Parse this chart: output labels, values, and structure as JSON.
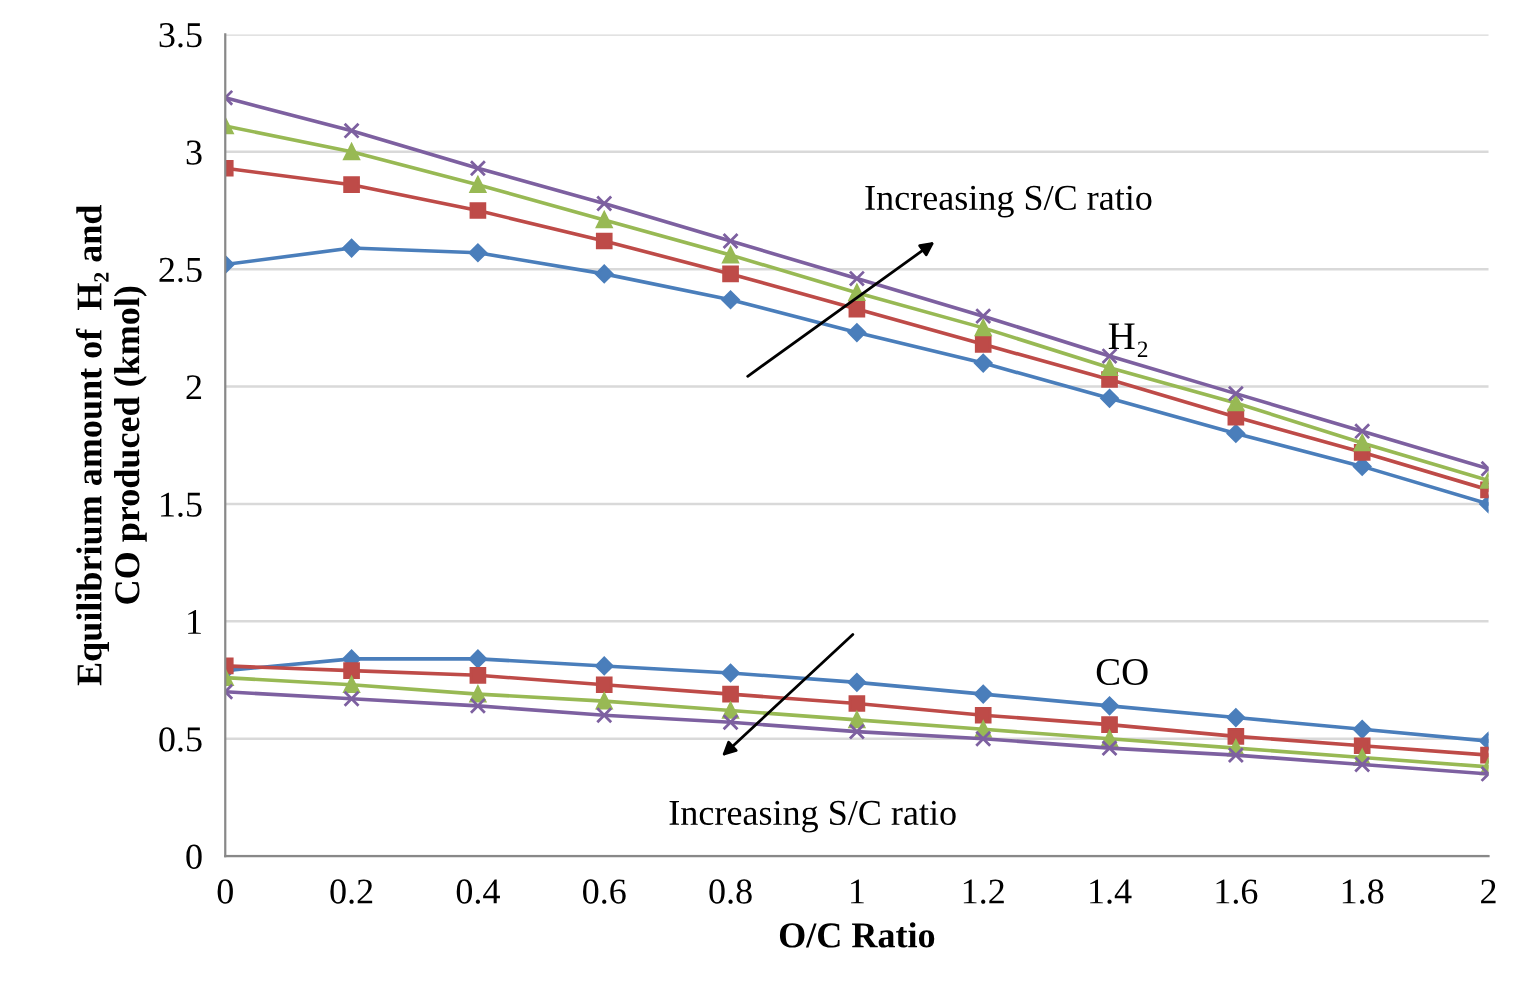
{
  "chart_data": {
    "type": "line",
    "xlabel": "O/C Ratio",
    "ylabel": "Equilibrium amount of  H₂ and\nCO produced (kmol)",
    "x": [
      0,
      0.2,
      0.4,
      0.6,
      0.8,
      1,
      1.2,
      1.4,
      1.6,
      1.8,
      2
    ],
    "xlim": [
      0,
      2
    ],
    "xticks": [
      0,
      0.2,
      0.4,
      0.6,
      0.8,
      1,
      1.2,
      1.4,
      1.6,
      1.8,
      2
    ],
    "ylim": [
      0,
      3.5
    ],
    "yticks": [
      0,
      0.5,
      1,
      1.5,
      2,
      2.5,
      3,
      3.5
    ],
    "grid": "y",
    "legend": false,
    "series": [
      {
        "color": "#4a7ebb",
        "marker": "diamond",
        "values": [
          2.52,
          2.59,
          2.57,
          2.48,
          2.37,
          2.23,
          2.1,
          1.95,
          1.8,
          1.66,
          1.5
        ]
      },
      {
        "color": "#be4b48",
        "marker": "square",
        "values": [
          2.93,
          2.86,
          2.75,
          2.62,
          2.48,
          2.33,
          2.18,
          2.03,
          1.87,
          1.72,
          1.56
        ]
      },
      {
        "color": "#98b954",
        "marker": "triangle",
        "values": [
          3.11,
          3.0,
          2.86,
          2.71,
          2.56,
          2.4,
          2.25,
          2.08,
          1.93,
          1.76,
          1.6
        ]
      },
      {
        "color": "#7d60a0",
        "marker": "cross",
        "values": [
          3.23,
          3.09,
          2.93,
          2.78,
          2.62,
          2.46,
          2.3,
          2.13,
          1.97,
          1.81,
          1.65
        ]
      },
      {
        "color": "#4a7ebb",
        "marker": "diamond",
        "values": [
          0.79,
          0.84,
          0.84,
          0.81,
          0.78,
          0.74,
          0.69,
          0.64,
          0.59,
          0.54,
          0.49
        ]
      },
      {
        "color": "#be4b48",
        "marker": "square",
        "values": [
          0.81,
          0.79,
          0.77,
          0.73,
          0.69,
          0.65,
          0.6,
          0.56,
          0.51,
          0.47,
          0.43
        ]
      },
      {
        "color": "#98b954",
        "marker": "triangle",
        "values": [
          0.76,
          0.73,
          0.69,
          0.66,
          0.62,
          0.58,
          0.54,
          0.5,
          0.46,
          0.42,
          0.38
        ]
      },
      {
        "color": "#7d60a0",
        "marker": "cross",
        "values": [
          0.7,
          0.67,
          0.64,
          0.6,
          0.57,
          0.53,
          0.5,
          0.46,
          0.43,
          0.39,
          0.35
        ]
      }
    ],
    "annotations": [
      "Increasing S/C ratio",
      "Increasing S/C ratio",
      "H₂",
      "CO"
    ]
  }
}
